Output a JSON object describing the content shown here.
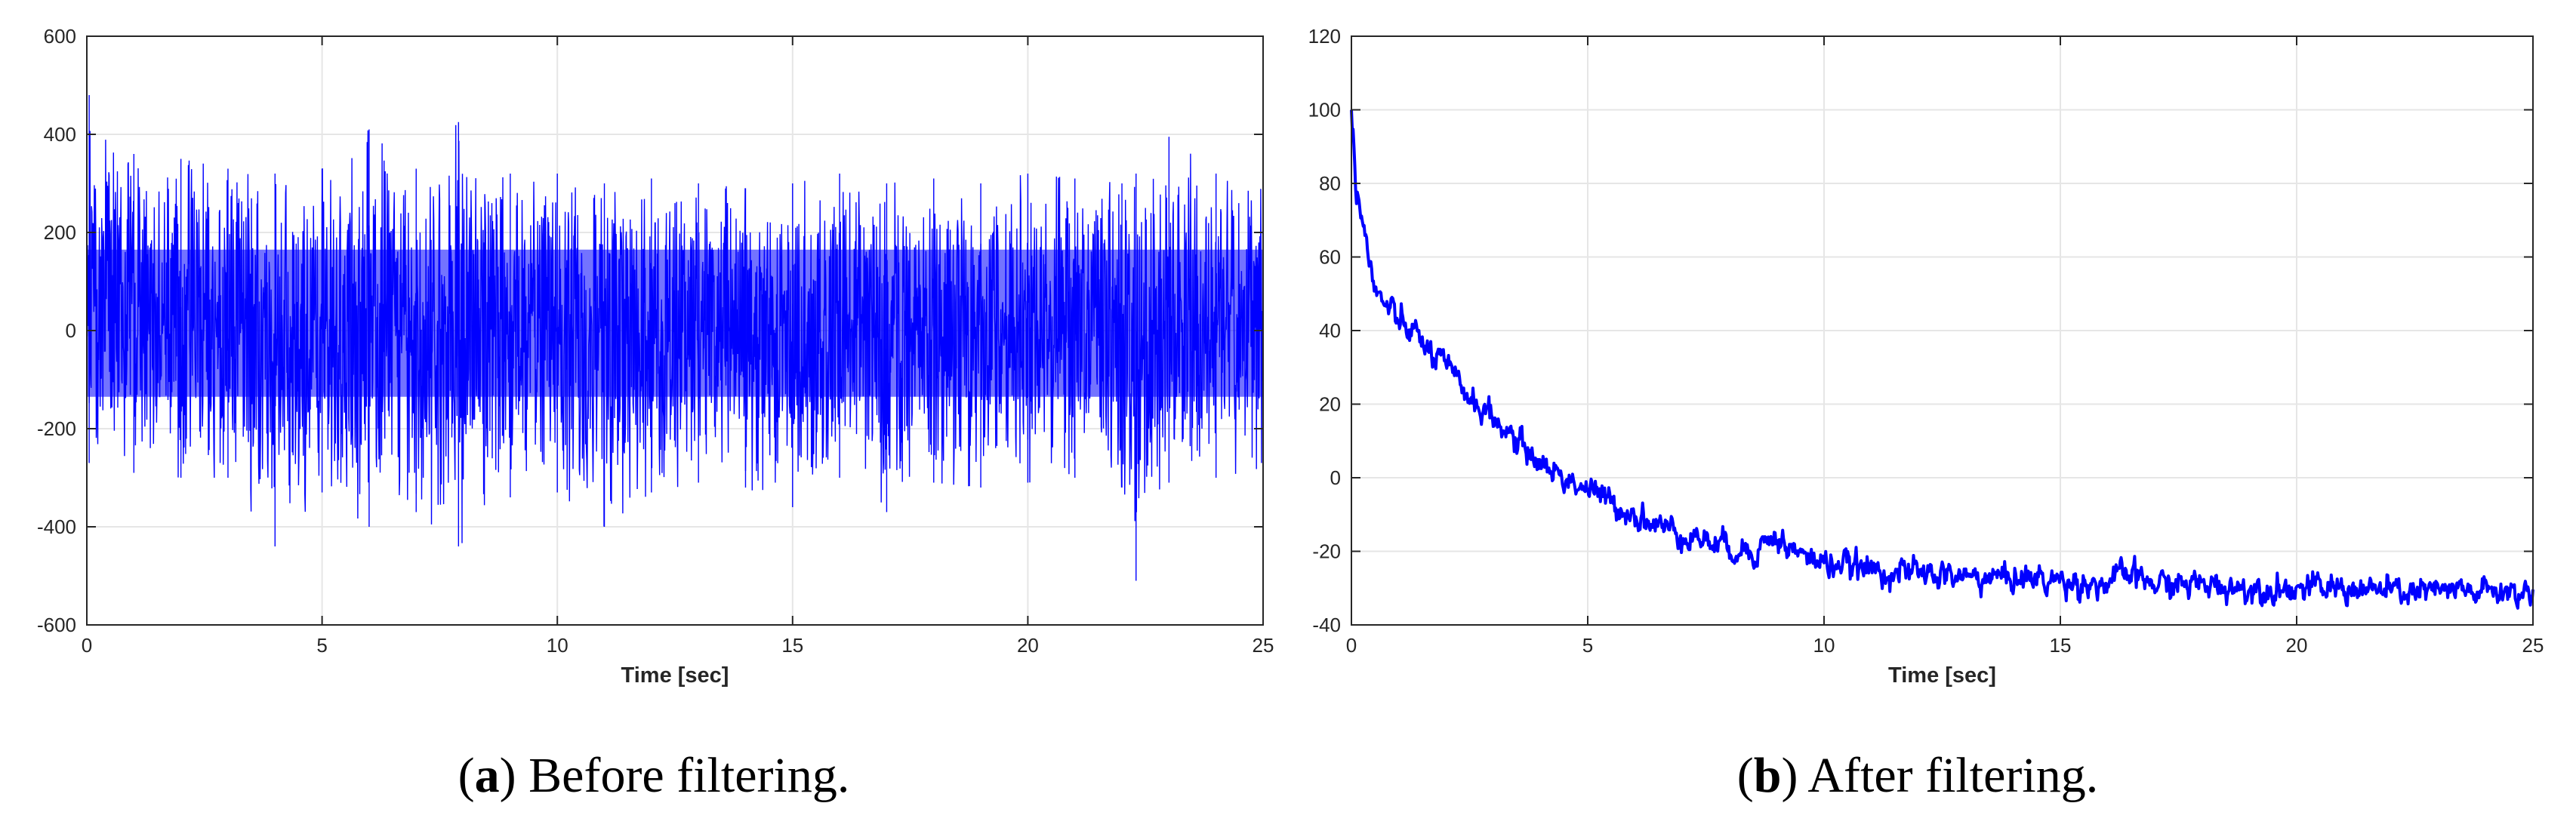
{
  "colors": {
    "series": "#0000ff",
    "grid": "#e6e6e6",
    "axes": "#262626"
  },
  "captions": [
    {
      "open": "(",
      "letter": "a",
      "close": ")",
      "text": " Before filtering."
    },
    {
      "open": "(",
      "letter": "b",
      "close": ")",
      "text": " After filtering."
    }
  ],
  "chart_data": [
    {
      "type": "line",
      "title": "",
      "xlabel": "Time [sec]",
      "ylabel": "",
      "xlim": [
        0,
        25
      ],
      "ylim": [
        -600,
        600
      ],
      "xticks": [
        0,
        5,
        10,
        15,
        20,
        25
      ],
      "yticks": [
        -600,
        -400,
        -200,
        0,
        200,
        400,
        600
      ],
      "grid": true,
      "noise_band": {
        "mean": 0,
        "typical_low": -270,
        "typical_high": 300,
        "peak_low": -510,
        "peak_high": 480
      },
      "series": [
        {
          "x": [
            0,
            0.05,
            1,
            2,
            3,
            4,
            5,
            6,
            7,
            7.9,
            9,
            10,
            11,
            12,
            13,
            14,
            15,
            16,
            17,
            18,
            19,
            20,
            21,
            22,
            22.3,
            23,
            24,
            25
          ],
          "high": [
            300,
            480,
            360,
            350,
            330,
            320,
            330,
            410,
            330,
            425,
            320,
            320,
            300,
            310,
            300,
            290,
            300,
            320,
            300,
            310,
            300,
            320,
            310,
            300,
            320,
            395,
            320,
            320
          ],
          "low": [
            -250,
            -270,
            -290,
            -300,
            -300,
            -440,
            -330,
            -400,
            -370,
            -440,
            -340,
            -330,
            -400,
            -330,
            -310,
            -320,
            -360,
            -300,
            -370,
            -310,
            -320,
            -310,
            -300,
            -320,
            -510,
            -310,
            -300,
            -290
          ]
        }
      ]
    },
    {
      "type": "line",
      "title": "",
      "xlabel": "Time [sec]",
      "ylabel": "",
      "xlim": [
        0,
        25
      ],
      "ylim": [
        -40,
        120
      ],
      "xticks": [
        0,
        5,
        10,
        15,
        20,
        25
      ],
      "yticks": [
        -40,
        -20,
        0,
        20,
        40,
        60,
        80,
        100,
        120
      ],
      "grid": true,
      "series": [
        {
          "x": [
            0,
            0.1,
            0.3,
            0.5,
            0.8,
            1,
            1.3,
            1.6,
            2,
            2.5,
            3,
            3.5,
            4,
            4.5,
            5,
            5.5,
            6,
            6.5,
            7,
            7.5,
            8,
            8.5,
            8.9,
            9.5,
            10,
            11,
            12,
            13,
            14,
            15,
            16,
            16.4,
            17,
            18,
            19,
            20,
            21,
            22,
            23,
            24,
            25
          ],
          "y": [
            100,
            80,
            65,
            50,
            46,
            42,
            40,
            35,
            30,
            22,
            16,
            10,
            4,
            0,
            -3,
            -7,
            -10,
            -13,
            -15,
            -17,
            -19,
            -20,
            -16,
            -21,
            -23,
            -25,
            -26,
            -27,
            -27,
            -28,
            -29,
            -26,
            -29,
            -29,
            -30,
            -30,
            -30,
            -31,
            -31,
            -31,
            -31
          ]
        }
      ]
    }
  ]
}
